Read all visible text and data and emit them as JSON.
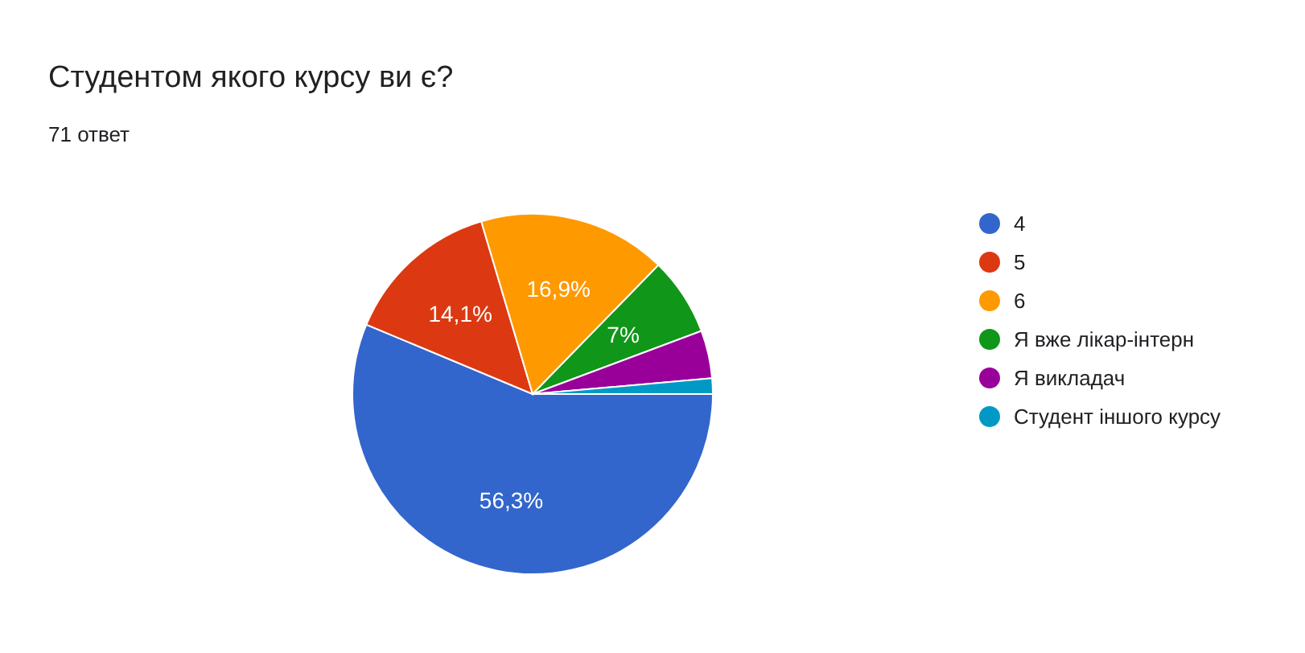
{
  "chart_data": {
    "type": "pie",
    "title": "Студентом якого курсу ви є?",
    "subtitle": "71 ответ",
    "categories": [
      "4",
      "5",
      "6",
      "Я вже лікар-інтерн",
      "Я викладач",
      "Студент іншого курсу"
    ],
    "values": [
      56.3,
      14.1,
      16.9,
      7,
      4.3,
      1.4
    ],
    "colors": [
      "#3366cc",
      "#dc3912",
      "#ff9900",
      "#109618",
      "#990099",
      "#0099c6"
    ],
    "value_labels": [
      "56,3%",
      "14,1%",
      "16,9%",
      "7%",
      null,
      null
    ],
    "legend": "right"
  }
}
